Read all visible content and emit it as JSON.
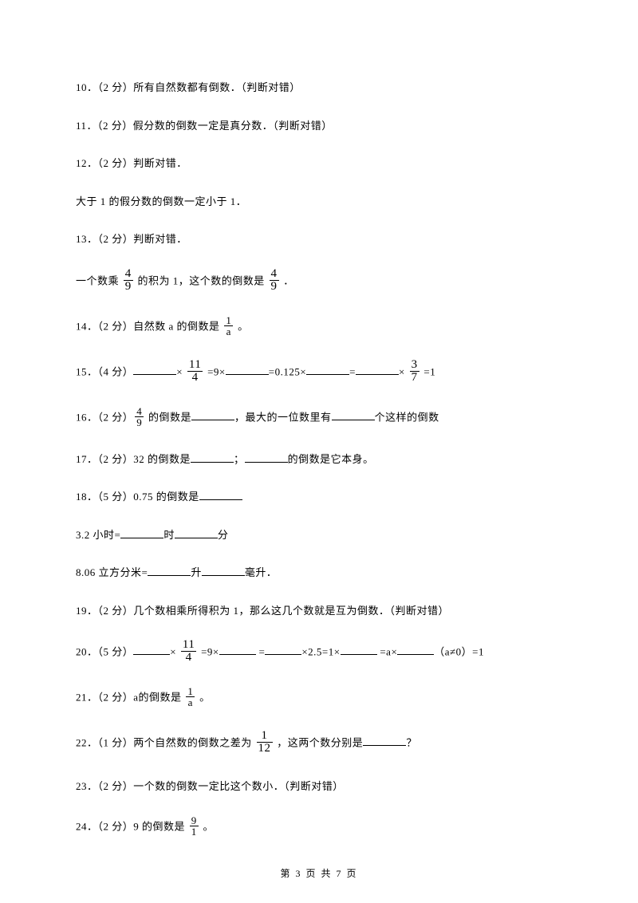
{
  "q10": {
    "num": "10．",
    "pts": "（2 分）",
    "text": "所有自然数都有倒数．（判断对错）"
  },
  "q11": {
    "num": "11．",
    "pts": "（2 分）",
    "text": "假分数的倒数一定是真分数．（判断对错）"
  },
  "q12": {
    "num": "12．",
    "pts": "（2 分）",
    "text": "判断对错．"
  },
  "q12b": "大于 1 的假分数的倒数一定小于 1．",
  "q13": {
    "num": "13．",
    "pts": "（2 分）",
    "text": "判断对错．"
  },
  "q13b": {
    "pre": "一个数乘 ",
    "f1n": "4",
    "f1d": "9",
    "mid": " 的积为 1，这个数的倒数是 ",
    "f2n": "4",
    "f2d": "9",
    "post": " ．"
  },
  "q14": {
    "num": "14．",
    "pts": "（2 分）",
    "pre": "自然数 a 的倒数是 ",
    "fn": "1",
    "fd": "a",
    "post": " 。"
  },
  "q15": {
    "num": "15．",
    "pts": "（4 分）",
    "times": "×",
    "f1n": "11",
    "f1d": "4",
    "eq9": " =9×",
    "eq0125": "=0.125×",
    "eq": "=",
    "f2n": "3",
    "f2d": "7",
    "eq1": " =1"
  },
  "q16": {
    "num": "16．",
    "pts": "（2 分）",
    "fn": "4",
    "fd": "9",
    "mid1": " 的倒数是",
    "mid2": "，最大的一位数里有",
    "post": "个这样的倒数"
  },
  "q17": {
    "num": "17．",
    "pts": "（2 分）",
    "pre": "32 的倒数是",
    "mid": "；",
    "post": "的倒数是它本身。"
  },
  "q18": {
    "num": "18．",
    "pts": "（5 分）",
    "text": "0.75 的倒数是"
  },
  "q18b": {
    "pre": "3.2 小时=",
    "mid": "时",
    "post": "分"
  },
  "q18c": {
    "pre": "8.06 立方分米=",
    "mid": "升",
    "post": "毫升．"
  },
  "q19": {
    "num": "19．",
    "pts": "（2 分）",
    "text": "几个数相乘所得积为 1，那么这几个数就是互为倒数．（判断对错）"
  },
  "q20": {
    "num": "20．",
    "pts": "（5 分）",
    "times": "×",
    "f1n": "11",
    "f1d": "4",
    "eq9": " =9×",
    "sp": " =",
    "eq25": "×2.5=1×",
    "eqa": " =a×",
    "post": "（a≠0）=1"
  },
  "q21": {
    "num": "21．",
    "pts": "（2 分）",
    "pre": "a的倒数是 ",
    "fn": "1",
    "fd": "a",
    "post": " 。"
  },
  "q22": {
    "num": "22．",
    "pts": "（1 分）",
    "pre": "两个自然数的倒数之差为 ",
    "fn": "1",
    "fd": "12",
    "mid": " ，这两个数分别是",
    "post": "？"
  },
  "q23": {
    "num": "23．",
    "pts": "（2 分）",
    "text": "一个数的倒数一定比这个数小．（判断对错）"
  },
  "q24": {
    "num": "24．",
    "pts": "（2 分）",
    "pre": "9 的倒数是 ",
    "fn": "9",
    "fd": "1",
    "post": " 。"
  },
  "footer": "第 3 页 共 7 页"
}
